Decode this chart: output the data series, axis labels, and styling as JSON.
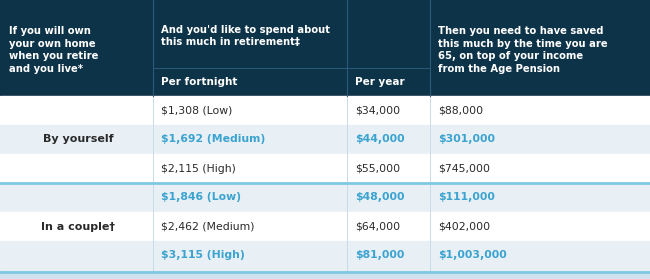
{
  "header_bg": "#0d3349",
  "header_text_color": "#ffffff",
  "row_bg_white": "#ffffff",
  "row_bg_grey": "#e8f0f5",
  "data_text_dark": "#2a2a2a",
  "data_text_blue": "#3ba3d0",
  "divider_color": "#7ec8e3",
  "outer_bg": "#cfe2ed",
  "col1_header": "If you will own\nyour own home\nwhen you retire\nand you live*",
  "col2_header": "And you'd like to spend about\nthis much in retirement‡",
  "col2a_sub": "Per fortnight",
  "col2b_sub": "Per year",
  "col3_header": "Then you need to have saved\nthis much by the time you are\n65, on top of your income\nfrom the Age Pension",
  "rows": [
    {
      "label": "",
      "col2a": "$1,308 (Low)",
      "col2b": "$34,000",
      "col3": "$88,000",
      "highlight": false,
      "blue": false,
      "group": "single"
    },
    {
      "label": "By yourself",
      "col2a": "$1,692 (Medium)",
      "col2b": "$44,000",
      "col3": "$301,000",
      "highlight": true,
      "blue": true,
      "group": "single"
    },
    {
      "label": "",
      "col2a": "$2,115 (High)",
      "col2b": "$55,000",
      "col3": "$745,000",
      "highlight": false,
      "blue": false,
      "group": "single"
    },
    {
      "label": "",
      "col2a": "$1,846 (Low)",
      "col2b": "$48,000",
      "col3": "$111,000",
      "highlight": true,
      "blue": true,
      "group": "couple"
    },
    {
      "label": "In a couple†",
      "col2a": "$2,462 (Medium)",
      "col2b": "$64,000",
      "col3": "$402,000",
      "highlight": false,
      "blue": false,
      "group": "couple"
    },
    {
      "label": "",
      "col2a": "$3,115 (High)",
      "col2b": "$81,000",
      "col3": "$1,003,000",
      "highlight": true,
      "blue": true,
      "group": "couple"
    }
  ],
  "figsize": [
    6.5,
    2.79
  ],
  "dpi": 100
}
